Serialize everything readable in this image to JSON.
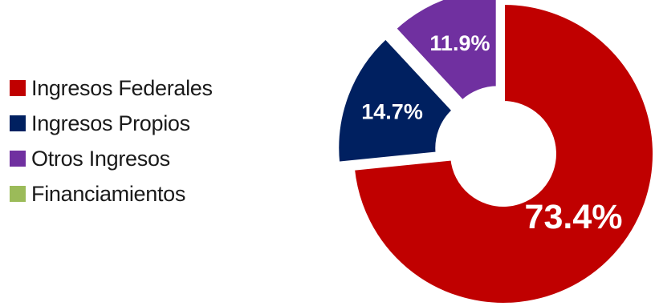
{
  "chart_data": {
    "type": "pie",
    "donut": true,
    "legend_position": "left",
    "slices": [
      {
        "label": "Ingresos Federales",
        "value": 73.4,
        "value_label": "73.4%",
        "color": "#c00000",
        "exploded": false
      },
      {
        "label": "Ingresos Propios",
        "value": 14.7,
        "value_label": "14.7%",
        "color": "#002060",
        "exploded": true
      },
      {
        "label": "Otros Ingresos",
        "value": 11.9,
        "value_label": "11.9%",
        "color": "#7030a0",
        "exploded": true
      },
      {
        "label": "Financiamientos",
        "value": 0.0,
        "value_label": "",
        "color": "#9bbb59",
        "exploded": false
      }
    ]
  }
}
